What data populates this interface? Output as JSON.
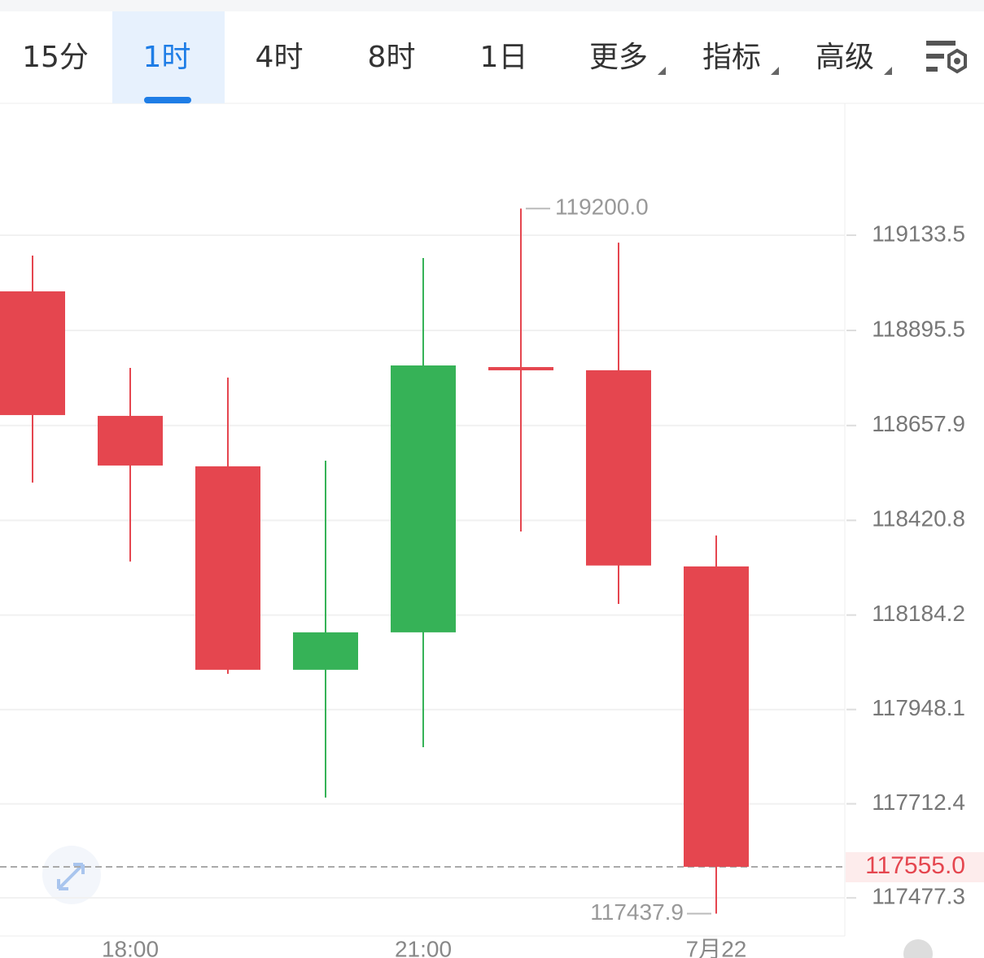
{
  "tabs": [
    "15分",
    "1时",
    "4时",
    "8时",
    "1日",
    "更多",
    "指标",
    "高级"
  ],
  "active_tab": 1,
  "chart_data": {
    "type": "candlestick",
    "categories": [
      null,
      "18:00",
      null,
      null,
      "21:00",
      null,
      null,
      "7月22"
    ],
    "open": [
      118993.2,
      118682.0,
      118555.9,
      118047.4,
      118141.0,
      118804.0,
      118796.0,
      118305.7
    ],
    "high": [
      119082.7,
      118802.0,
      118777.6,
      118570.0,
      119076.6,
      119200.0,
      119115.0,
      118383.0
    ],
    "low": [
      118515.2,
      118318.0,
      118037.2,
      117728.0,
      117854.0,
      118393.0,
      118212.0,
      117437.9
    ],
    "close": [
      118684.0,
      118557.9,
      118047.4,
      118141.0,
      118808.0,
      118800.0,
      118308.0,
      117555.0
    ],
    "up_color": "#36b257",
    "down_color": "#e5464f",
    "ylim": [
      117382,
      119463
    ],
    "yticks": [
      119133.5,
      118895.5,
      118657.9,
      118420.8,
      118184.2,
      117948.1,
      117712.4,
      117477.3
    ],
    "grid": true,
    "high_annotation": {
      "value": 119200,
      "label": "119200.0"
    },
    "low_annotation": 117437.9,
    "last_price": {
      "value": 117555,
      "label": "117555.0"
    }
  }
}
